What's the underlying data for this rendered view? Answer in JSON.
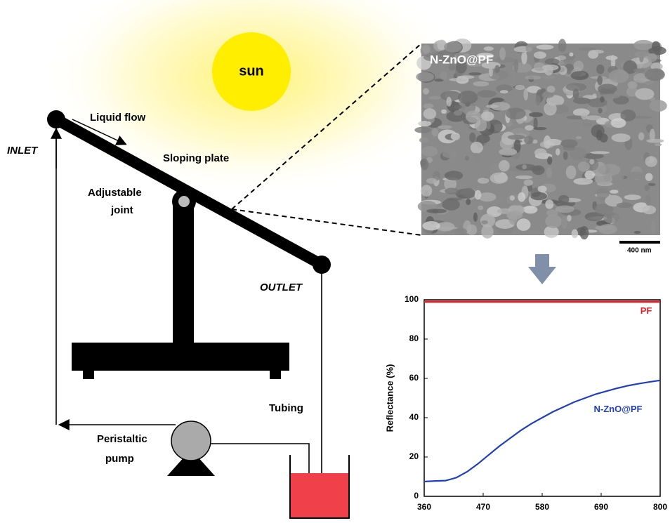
{
  "labels": {
    "sun": "sun",
    "liquid_flow": "Liquid flow",
    "sloping_plate": "Sloping plate",
    "inlet": "INLET",
    "adjustable_joint": [
      "Adjustable",
      "joint"
    ],
    "outlet": "OUTLET",
    "tubing": "Tubing",
    "pump": [
      "Peristaltic",
      "pump"
    ],
    "sem_label": "N-ZnO@PF",
    "scale_bar": "400 nm"
  },
  "chart_data": {
    "type": "line",
    "y_label": "Reflectance (%)",
    "x": [
      360,
      380,
      400,
      420,
      440,
      460,
      480,
      500,
      520,
      540,
      560,
      580,
      600,
      620,
      640,
      660,
      680,
      700,
      720,
      740,
      760,
      780,
      800
    ],
    "series": [
      {
        "name": "PF",
        "color": "#e0202a",
        "values": [
          99,
          99,
          99,
          99,
          99,
          99,
          99,
          99,
          99,
          99,
          99,
          99,
          99,
          99,
          99,
          99,
          99,
          99,
          99,
          99,
          99,
          99,
          99
        ]
      },
      {
        "name": "N-ZnO@PF",
        "color": "#1f3fc0",
        "values": [
          7.5,
          7.8,
          8,
          9.5,
          12.5,
          16.5,
          21,
          25.5,
          29.5,
          33.5,
          37,
          40,
          43,
          45.5,
          48,
          50,
          52,
          53.5,
          55,
          56.3,
          57.3,
          58.2,
          59
        ]
      }
    ],
    "xlim": [
      360,
      800
    ],
    "xticks": [
      360,
      470,
      580,
      690,
      800
    ],
    "ylim": [
      0,
      100
    ],
    "yticks": [
      0,
      20,
      40,
      60,
      80,
      100
    ]
  }
}
